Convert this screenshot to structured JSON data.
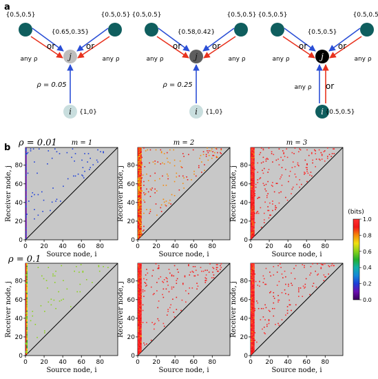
{
  "panel_a": {
    "label": "a",
    "diagrams": [
      {
        "left_prior": "{0.5,0.5}",
        "right_prior": "{0.5,0.5}",
        "center_prob": "{0.65,0.35}",
        "or_left": "or",
        "or_right": "or",
        "any_left": "any ρ",
        "any_right": "any ρ",
        "j_label": "j",
        "i_label": "i",
        "rho_text": "ρ = 0.05",
        "i_prior": "{1,0}",
        "or_bottom": "",
        "any_bottom": "",
        "j_color": "#bdbdbd",
        "i_color": "#c9dede"
      },
      {
        "left_prior": "{0.5,0.5}",
        "right_prior": "{0.5,0.5}",
        "center_prob": "{0.58,0.42}",
        "or_left": "or",
        "or_right": "or",
        "any_left": "any ρ",
        "any_right": "any ρ",
        "j_label": "j",
        "i_label": "i",
        "rho_text": "ρ = 0.25",
        "i_prior": "{1,0}",
        "or_bottom": "",
        "any_bottom": "",
        "j_color": "#5e5e5e",
        "i_color": "#c9dede"
      },
      {
        "left_prior": "{0.5,0.5}",
        "right_prior": "{0.5,0.5}",
        "center_prob": "{0.5,0.5}",
        "or_left": "or",
        "or_right": "or",
        "any_left": "any ρ",
        "any_right": "any ρ",
        "j_label": "j",
        "i_label": "i",
        "rho_text": "",
        "i_prior": "{0.5,0.5}",
        "or_bottom": "or",
        "any_bottom": "any ρ",
        "j_color": "#000000",
        "i_color": "#0f5e5e"
      }
    ],
    "colors": {
      "node_teal": "#0f5e5e",
      "blue_arrow": "#2b4fd6",
      "red_arrow": "#e8321e"
    }
  },
  "panel_b": {
    "label": "b",
    "rows": [
      {
        "rho": "ρ = 0.01"
      },
      {
        "rho": "ρ = 0.1"
      }
    ],
    "columns": [
      {
        "m": "m = 1"
      },
      {
        "m": "m = 2"
      },
      {
        "m": "m = 3"
      }
    ],
    "xlabel": "Source node, i",
    "ylabel": "Receiver node, j",
    "xticks": [
      "0",
      "20",
      "40",
      "60",
      "80"
    ],
    "yticks": [
      "0",
      "20",
      "40",
      "60",
      "80"
    ],
    "colorbar": {
      "unit": "(bits)",
      "ticks": [
        "0.0",
        "0.2",
        "0.4",
        "0.6",
        "0.8",
        "1.0"
      ],
      "colors": [
        "#3a005a",
        "#6a0fb0",
        "#1d3fd8",
        "#1488d8",
        "#11b0a8",
        "#22b02e",
        "#8ad21a",
        "#f0e010",
        "#f58a0a",
        "#f01818",
        "#ff3030"
      ]
    },
    "background": "#c8c8c8"
  },
  "chart_data": [
    {
      "type": "heatmap",
      "title": "ρ = 0.01, m = 1",
      "xlabel": "Source node, i",
      "ylabel": "Receiver node, j",
      "xlim": [
        0,
        99
      ],
      "ylim": [
        0,
        99
      ],
      "dominant_value_bits": 0.1,
      "colormap_range": [
        0.0,
        1.0
      ]
    },
    {
      "type": "heatmap",
      "title": "m = 2",
      "xlabel": "Source node, i",
      "ylabel": "Receiver node, j",
      "xlim": [
        0,
        99
      ],
      "ylim": [
        0,
        99
      ],
      "dominant_value_bits": 0.85,
      "colormap_range": [
        0.0,
        1.0
      ]
    },
    {
      "type": "heatmap",
      "title": "m = 3",
      "xlabel": "Source node, i",
      "ylabel": "Receiver node, j",
      "xlim": [
        0,
        99
      ],
      "ylim": [
        0,
        99
      ],
      "dominant_value_bits": 0.95,
      "colormap_range": [
        0.0,
        1.0
      ]
    },
    {
      "type": "heatmap",
      "title": "ρ = 0.1, m = 1",
      "xlabel": "Source node, i",
      "ylabel": "Receiver node, j",
      "xlim": [
        0,
        99
      ],
      "ylim": [
        0,
        99
      ],
      "dominant_value_bits": 0.6,
      "colormap_range": [
        0.0,
        1.0
      ]
    },
    {
      "type": "heatmap",
      "title": "ρ = 0.1, m = 2",
      "xlabel": "Source node, i",
      "ylabel": "Receiver node, j",
      "xlim": [
        0,
        99
      ],
      "ylim": [
        0,
        99
      ],
      "dominant_value_bits": 0.95,
      "colormap_range": [
        0.0,
        1.0
      ]
    },
    {
      "type": "heatmap",
      "title": "ρ = 0.1, m = 3",
      "xlabel": "Source node, i",
      "ylabel": "Receiver node, j",
      "xlim": [
        0,
        99
      ],
      "ylim": [
        0,
        99
      ],
      "dominant_value_bits": 0.95,
      "colormap_range": [
        0.0,
        1.0
      ]
    }
  ]
}
